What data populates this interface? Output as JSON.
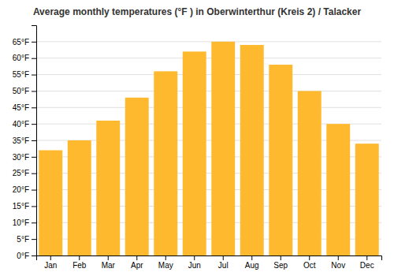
{
  "chart_data": {
    "type": "bar",
    "title": "Average monthly temperatures (°F ) in Oberwinterthur (Kreis 2) / Talacker",
    "categories": [
      "Jan",
      "Feb",
      "Mar",
      "Apr",
      "May",
      "Jun",
      "Jul",
      "Aug",
      "Sep",
      "Oct",
      "Nov",
      "Dec"
    ],
    "values": [
      32,
      35,
      41,
      48,
      56,
      62,
      65,
      64,
      58,
      50,
      40,
      34
    ],
    "color": "#FFB92E",
    "ylim": [
      0,
      70
    ],
    "yticks": [
      {
        "value": 0,
        "label": "0°F"
      },
      {
        "value": 5,
        "label": "5°F"
      },
      {
        "value": 10,
        "label": "10°F"
      },
      {
        "value": 15,
        "label": "15°F"
      },
      {
        "value": 20,
        "label": "20°F"
      },
      {
        "value": 25,
        "label": "25°F"
      },
      {
        "value": 30,
        "label": "30°F"
      },
      {
        "value": 35,
        "label": "35°F"
      },
      {
        "value": 40,
        "label": "40°F"
      },
      {
        "value": 45,
        "label": "45°F"
      },
      {
        "value": 50,
        "label": "50°F"
      },
      {
        "value": 55,
        "label": "55°F"
      },
      {
        "value": 60,
        "label": "60°F"
      },
      {
        "value": 65,
        "label": "65°F"
      }
    ],
    "grid": true
  }
}
